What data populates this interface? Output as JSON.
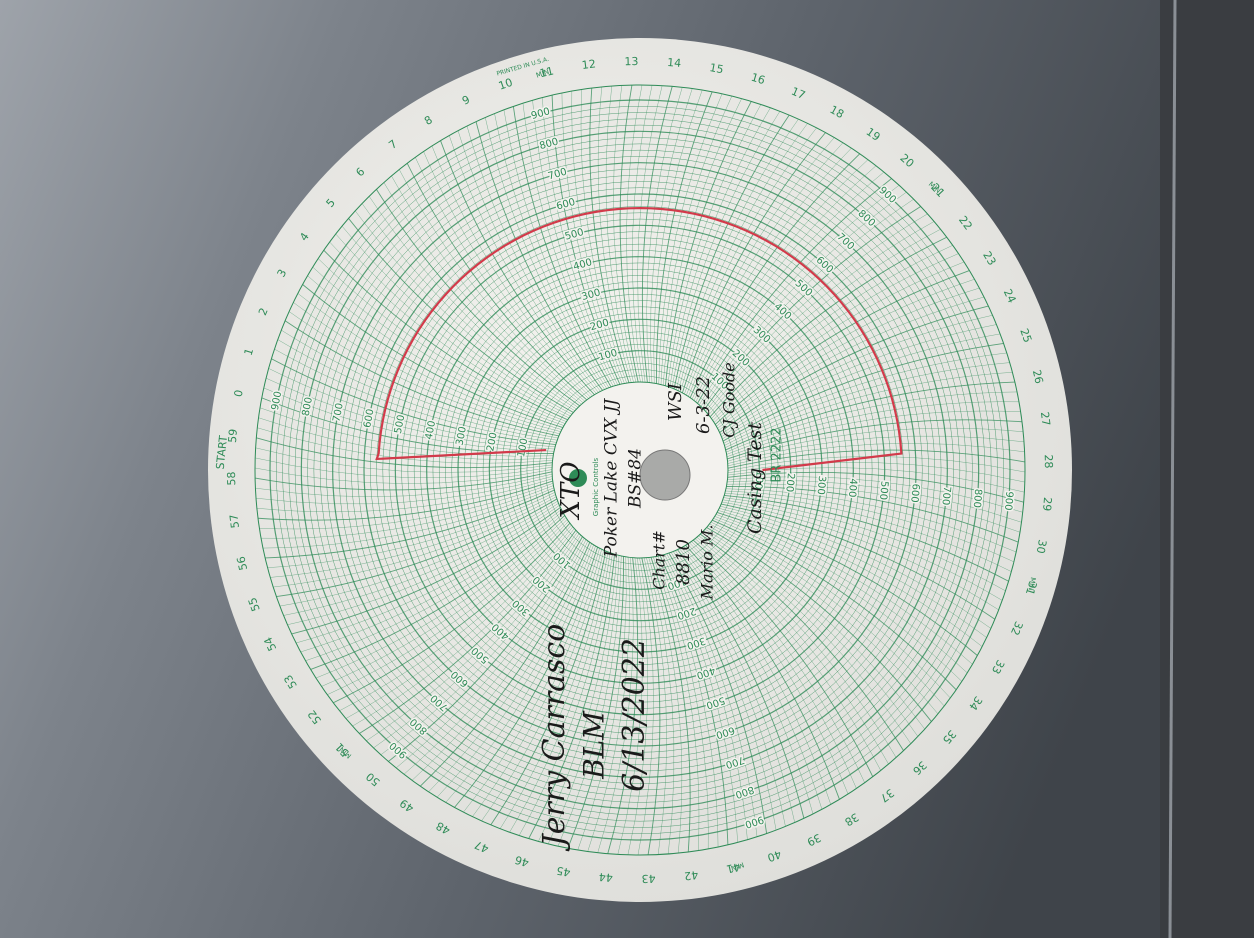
{
  "chart_paper": {
    "start_label": "START",
    "printed_note": "PRINTED IN U.S.A.",
    "minute_labels": [
      "0",
      "1",
      "2",
      "3",
      "4",
      "5",
      "6",
      "7",
      "8",
      "9",
      "10",
      "11",
      "12",
      "13",
      "14",
      "15",
      "16",
      "17",
      "18",
      "19",
      "20",
      "21",
      "22",
      "23",
      "24",
      "25",
      "26",
      "27",
      "28",
      "29",
      "30",
      "31",
      "32",
      "33",
      "34",
      "35",
      "36",
      "37",
      "38",
      "39",
      "40",
      "41",
      "42",
      "43",
      "44",
      "45",
      "46",
      "47",
      "48",
      "49",
      "50",
      "51",
      "52",
      "53",
      "54",
      "55",
      "56",
      "57",
      "58",
      "59"
    ],
    "min_label": "MIN",
    "scale_labels": [
      "100",
      "200",
      "300",
      "400",
      "500",
      "600",
      "700",
      "800",
      "900"
    ],
    "brand": "Graphic Controls",
    "chart_number": "BR 2222"
  },
  "handwriting": {
    "company": "XTO",
    "lease": "Poker Lake CVX JJ",
    "well": "BS#84",
    "chart_label": "Chart#",
    "chart_no": "8810",
    "operator": "Mario M.",
    "contractor": "WSI",
    "date": "6-3-22",
    "witness": "CJ Goode",
    "test": "Casing Test",
    "inspector": "Jerry Carrasco",
    "agency": "BLM",
    "inspection_date": "6/13/2022"
  }
}
